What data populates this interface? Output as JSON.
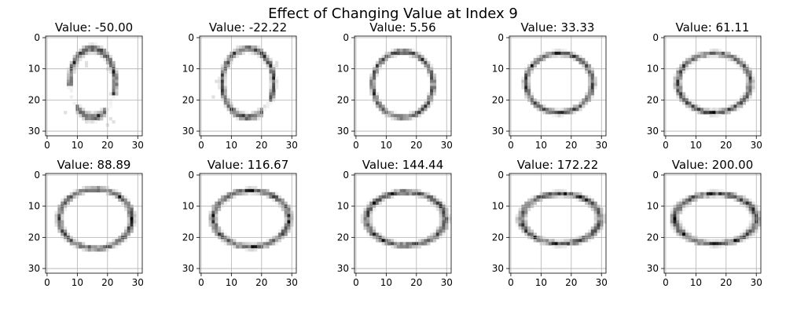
{
  "title": "Effect of Changing Value at Index 9",
  "chart_data": {
    "type": "heatmap",
    "title": "Effect of Changing Value at Index 9",
    "grid": true,
    "colormap": "gray_r",
    "image_size": 32,
    "xlim": [
      -0.5,
      31.5
    ],
    "ylim": [
      31.5,
      -0.5
    ],
    "xticks": [
      0,
      10,
      20,
      30
    ],
    "yticks": [
      0,
      10,
      20,
      30
    ],
    "panels": [
      {
        "title": "Value: -50.00",
        "value": -50.0,
        "shape": {
          "cx": 15.0,
          "cy": 14.5,
          "rx": 7.5,
          "ry": 11.0,
          "gaps": [
            [
              0.35,
              0.95
            ],
            [
              2.35,
              3.05
            ]
          ],
          "stray": true
        }
      },
      {
        "title": "Value: -22.22",
        "value": -22.22,
        "shape": {
          "cx": 15.5,
          "cy": 14.5,
          "rx": 8.5,
          "ry": 11.0,
          "gaps": [
            [
              0.55,
              0.95
            ]
          ],
          "stray": true
        }
      },
      {
        "title": "Value: 5.56",
        "value": 5.56,
        "shape": {
          "cx": 15.5,
          "cy": 15.0,
          "rx": 10.0,
          "ry": 10.5,
          "gaps": [],
          "stray": false
        }
      },
      {
        "title": "Value: 33.33",
        "value": 33.33,
        "shape": {
          "cx": 16.0,
          "cy": 14.5,
          "rx": 11.0,
          "ry": 9.5,
          "gaps": [],
          "stray": false
        }
      },
      {
        "title": "Value: 61.11",
        "value": 61.11,
        "shape": {
          "cx": 16.0,
          "cy": 14.5,
          "rx": 12.0,
          "ry": 9.5,
          "gaps": [],
          "stray": false
        }
      },
      {
        "title": "Value: 88.89",
        "value": 88.89,
        "shape": {
          "cx": 16.0,
          "cy": 14.0,
          "rx": 12.0,
          "ry": 9.5,
          "gaps": [],
          "stray": false
        }
      },
      {
        "title": "Value: 116.67",
        "value": 116.67,
        "shape": {
          "cx": 16.5,
          "cy": 14.0,
          "rx": 12.5,
          "ry": 9.0,
          "gaps": [],
          "stray": false
        }
      },
      {
        "title": "Value: 144.44",
        "value": 144.44,
        "shape": {
          "cx": 16.5,
          "cy": 14.0,
          "rx": 13.0,
          "ry": 8.5,
          "gaps": [],
          "stray": false
        }
      },
      {
        "title": "Value: 172.22",
        "value": 172.22,
        "shape": {
          "cx": 16.5,
          "cy": 14.0,
          "rx": 13.0,
          "ry": 8.0,
          "gaps": [],
          "stray": false
        }
      },
      {
        "title": "Value: 200.00",
        "value": 200.0,
        "shape": {
          "cx": 16.5,
          "cy": 14.0,
          "rx": 13.5,
          "ry": 8.0,
          "gaps": [],
          "stray": false
        }
      }
    ]
  }
}
